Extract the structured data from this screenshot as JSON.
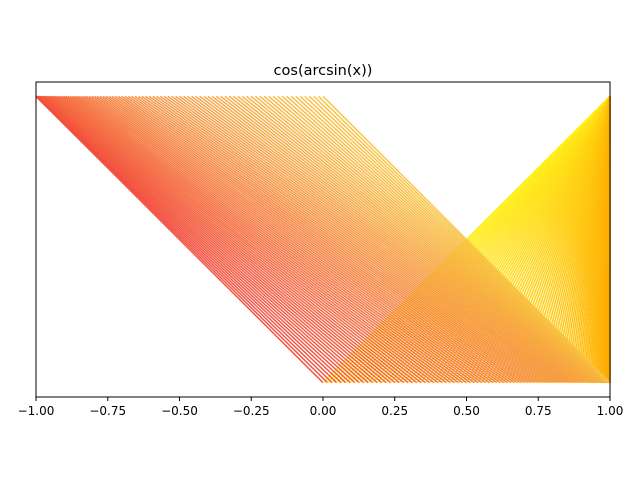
{
  "chart_data": {
    "type": "line",
    "title": "cos(arcsin(x))",
    "xlabel": "",
    "ylabel": "",
    "xlim": [
      -1.0,
      1.0
    ],
    "ylim": [
      -0.05,
      1.05
    ],
    "x_ticks": [
      "−1.00",
      "−0.75",
      "−0.50",
      "−0.25",
      "0.00",
      "0.25",
      "0.50",
      "0.75",
      "1.00"
    ],
    "x_tick_values": [
      -1.0,
      -0.75,
      -0.5,
      -0.25,
      0.0,
      0.25,
      0.5,
      0.75,
      1.0
    ],
    "y_axis_visible": false,
    "grid": false,
    "legend": "none",
    "segment_count": 100,
    "segments_description": "Family of line segments from (sin t, 0) to (-cos t, 1) for t from 0 to pi/2, plus the mirror family from (sin t, 0) to (1, 1)",
    "families": [
      {
        "name": "",
        "bottom_x": "sin(t)",
        "top_x": "-cos(t)",
        "t_range": [
          0,
          1.5708
        ],
        "color_start": "#f24a3c",
        "color_end": "#f9c340"
      },
      {
        "name": "",
        "bottom_x": "sin(t)",
        "top_x": "1",
        "t_range": [
          0,
          1.5708
        ],
        "color_start": "#ffef1a",
        "color_end": "#ffa500"
      }
    ],
    "colors": {
      "red": "#f24a3c",
      "orange": "#ffa500",
      "yellow": "#ffef1a"
    }
  }
}
